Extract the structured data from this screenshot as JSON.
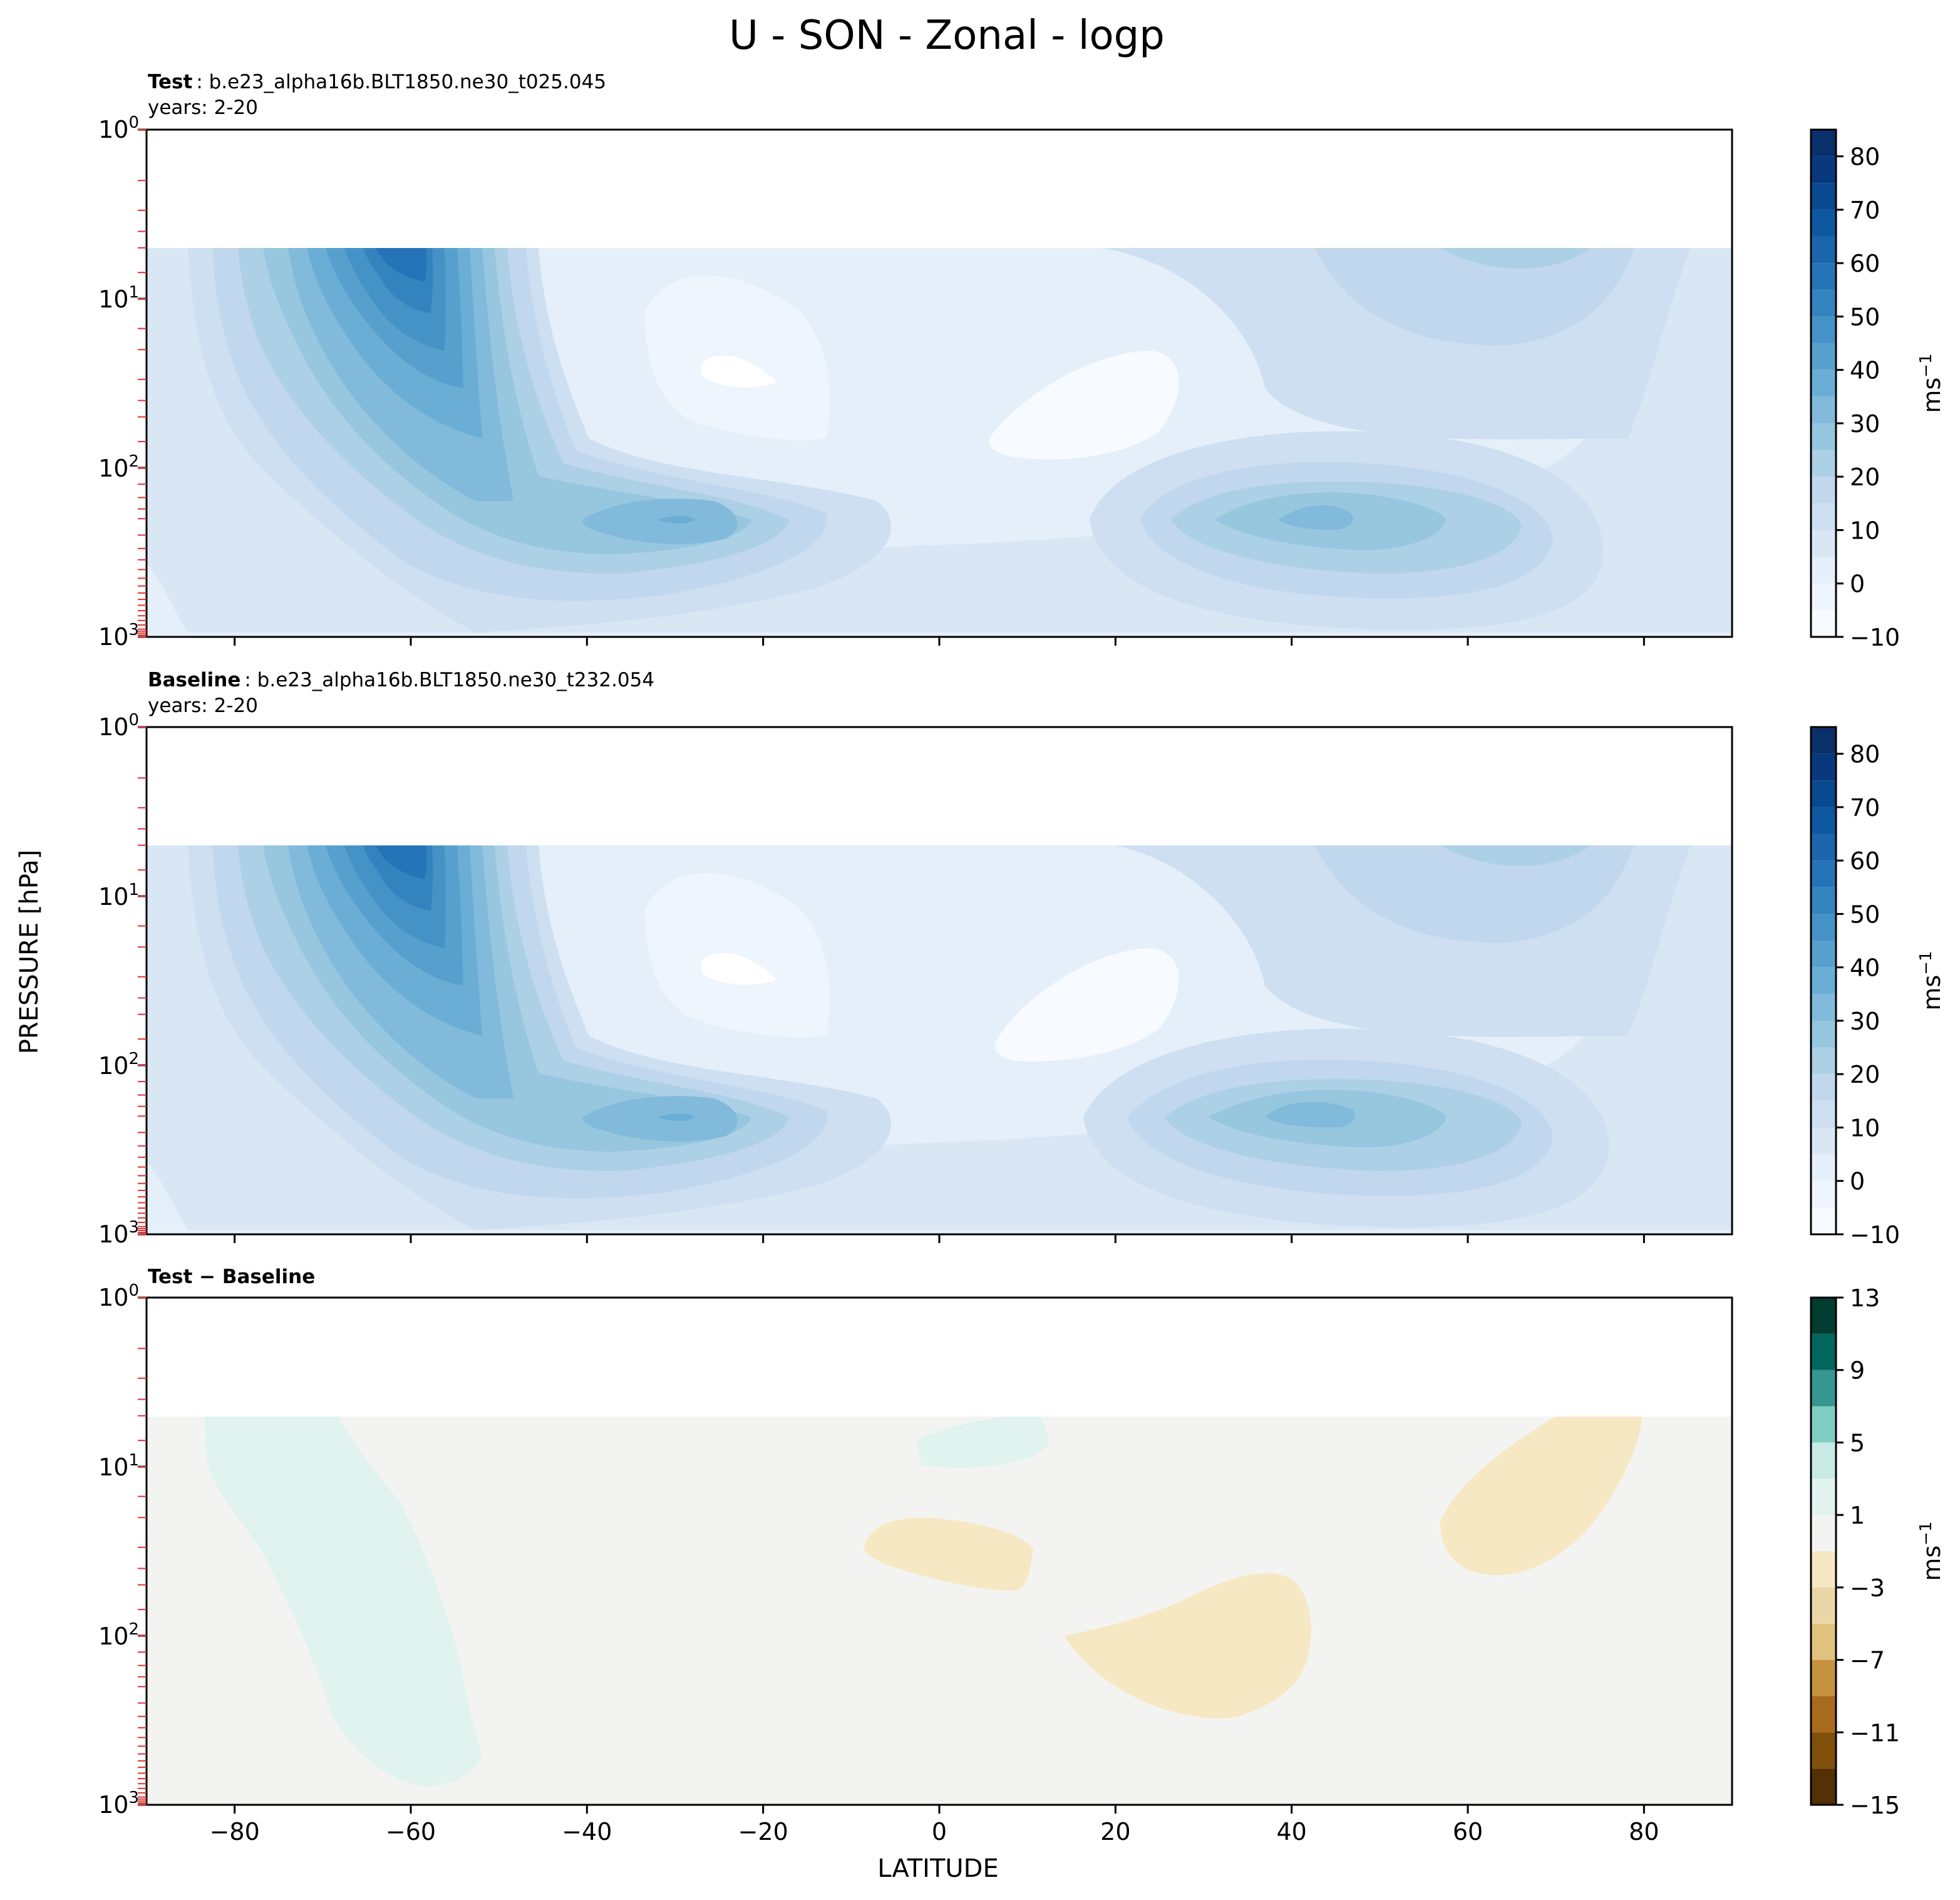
{
  "figure_title": "U - SON - Zonal - logp",
  "chart_data": [
    {
      "type": "contour",
      "panel_label": "Test",
      "case_name": ": b.e23_alpha16b.BLT1850.ne30_t025.045",
      "years": "years: 2-20",
      "ylabel": "PRESSURE [hPa]",
      "xlabel": "",
      "xlim": [
        -90,
        90
      ],
      "ylim": [
        1000,
        1
      ],
      "yscale": "log",
      "x_ticks": [
        -80,
        -60,
        -40,
        -20,
        0,
        20,
        40,
        60,
        80
      ],
      "y_ticks": [
        "10^0",
        "10^1",
        "10^2",
        "10^3"
      ],
      "data_top_hPa": 5,
      "colorbar": {
        "label": "ms^-1",
        "ticks": [
          -10,
          0,
          10,
          20,
          30,
          40,
          50,
          60,
          70,
          80
        ],
        "levels": [
          -10,
          -5,
          0,
          5,
          10,
          15,
          20,
          25,
          30,
          35,
          40,
          45,
          50,
          55,
          60,
          65,
          70,
          75,
          80,
          85
        ],
        "colors": [
          "#f7fbff",
          "#eef5fc",
          "#e4eff9",
          "#d9e7f5",
          "#cddff1",
          "#c0d7ed",
          "#acd0e6",
          "#97c6df",
          "#81badb",
          "#6aaed6",
          "#57a0ce",
          "#4592c6",
          "#3383be",
          "#2474b7",
          "#1966ad",
          "#0e58a2",
          "#084990",
          "#08397e",
          "#08306b"
        ]
      },
      "features": [
        {
          "name": "SH stratospheric jet",
          "lat": -63,
          "p_hPa": 8,
          "u": 57
        },
        {
          "name": "SH subtropical jet",
          "lat": -30,
          "p_hPa": 200,
          "u": 37
        },
        {
          "name": "NH subtropical jet",
          "lat": 42,
          "p_hPa": 200,
          "u": 27
        },
        {
          "name": "NH polar night jet",
          "lat": 70,
          "p_hPa": 6,
          "u": 24
        },
        {
          "name": "Tropical easterlies",
          "lat": -25,
          "p_hPa": 30,
          "u": -4
        },
        {
          "name": "Tropical easterlies",
          "lat": 15,
          "p_hPa": 50,
          "u": -3
        }
      ]
    },
    {
      "type": "contour",
      "panel_label": "Baseline",
      "case_name": ": b.e23_alpha16b.BLT1850.ne30_t232.054",
      "years": "years: 2-20",
      "ylabel": "PRESSURE [hPa]",
      "xlabel": "",
      "xlim": [
        -90,
        90
      ],
      "ylim": [
        1000,
        1
      ],
      "yscale": "log",
      "x_ticks": [
        -80,
        -60,
        -40,
        -20,
        0,
        20,
        40,
        60,
        80
      ],
      "y_ticks": [
        "10^0",
        "10^1",
        "10^2",
        "10^3"
      ],
      "data_top_hPa": 5,
      "colorbar": {
        "label": "ms^-1",
        "ticks": [
          -10,
          0,
          10,
          20,
          30,
          40,
          50,
          60,
          70,
          80
        ],
        "levels": [
          -10,
          -5,
          0,
          5,
          10,
          15,
          20,
          25,
          30,
          35,
          40,
          45,
          50,
          55,
          60,
          65,
          70,
          75,
          80,
          85
        ],
        "colors": [
          "#f7fbff",
          "#eef5fc",
          "#e4eff9",
          "#d9e7f5",
          "#cddff1",
          "#c0d7ed",
          "#acd0e6",
          "#97c6df",
          "#81badb",
          "#6aaed6",
          "#57a0ce",
          "#4592c6",
          "#3383be",
          "#2474b7",
          "#1966ad",
          "#0e58a2",
          "#084990",
          "#08397e",
          "#08306b"
        ]
      },
      "features": [
        {
          "name": "SH stratospheric jet",
          "lat": -63,
          "p_hPa": 8,
          "u": 56
        },
        {
          "name": "SH subtropical jet",
          "lat": -30,
          "p_hPa": 200,
          "u": 37
        },
        {
          "name": "NH subtropical jet",
          "lat": 42,
          "p_hPa": 200,
          "u": 28
        },
        {
          "name": "NH polar night jet",
          "lat": 70,
          "p_hPa": 6,
          "u": 25
        },
        {
          "name": "Tropical easterlies",
          "lat": -25,
          "p_hPa": 30,
          "u": -4
        },
        {
          "name": "Tropical easterlies",
          "lat": 15,
          "p_hPa": 50,
          "u": -4
        }
      ]
    },
    {
      "type": "contour",
      "panel_label": "Test − Baseline",
      "case_name": "",
      "years": "",
      "ylabel": "PRESSURE [hPa]",
      "xlabel": "LATITUDE",
      "xlim": [
        -90,
        90
      ],
      "ylim": [
        1000,
        1
      ],
      "yscale": "log",
      "x_ticks": [
        -80,
        -60,
        -40,
        -20,
        0,
        20,
        40,
        60,
        80
      ],
      "y_ticks": [
        "10^0",
        "10^1",
        "10^2",
        "10^3"
      ],
      "data_top_hPa": 5,
      "colorbar": {
        "label": "ms^-1",
        "ticks": [
          -15,
          -11,
          -7,
          -3,
          1,
          5,
          9,
          13
        ],
        "levels": [
          -15,
          -13,
          -11,
          -9,
          -7,
          -5,
          -3,
          -1,
          1,
          3,
          5,
          7,
          9,
          11,
          13
        ],
        "colors": [
          "#543005",
          "#80500a",
          "#a86b1d",
          "#c6923f",
          "#dfc27d",
          "#ebd6a8",
          "#f6e8c3",
          "#f3f4f2",
          "#e0f3ef",
          "#c7eae5",
          "#80cdc1",
          "#35978f",
          "#01665e",
          "#003c30"
        ]
      },
      "features": [
        {
          "name": "positive anomaly band",
          "lat": -62,
          "p_hPa": 100,
          "du": 2
        },
        {
          "name": "positive anomaly",
          "lat": 5,
          "p_hPa": 9,
          "du": 2
        },
        {
          "name": "negative anomaly",
          "lat": 0,
          "p_hPa": 40,
          "du": -2
        },
        {
          "name": "negative anomaly",
          "lat": 28,
          "p_hPa": 150,
          "du": -2
        },
        {
          "name": "negative anomaly",
          "lat": 68,
          "p_hPa": 20,
          "du": -2
        }
      ]
    }
  ]
}
